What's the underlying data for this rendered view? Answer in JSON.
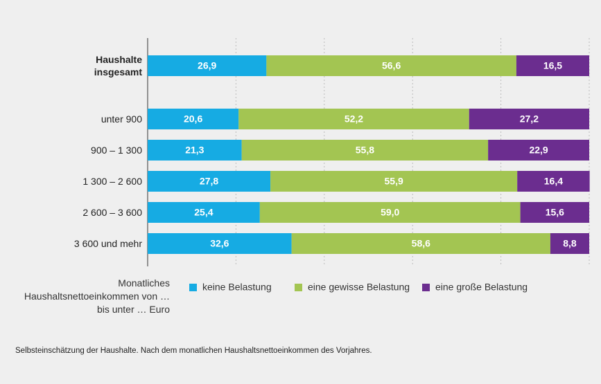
{
  "chart_data": {
    "type": "stacked_barh",
    "categories": [
      "Haushalte insgesamt",
      "unter 900",
      "900 – 1 300",
      "1 300 – 2 600",
      "2 600 – 3 600",
      "3 600 und mehr"
    ],
    "series": [
      {
        "name": "keine Belastung",
        "color": "#16abe3",
        "values": [
          26.9,
          20.6,
          21.3,
          27.8,
          25.4,
          32.6
        ],
        "value_labels": [
          "26,9",
          "20,6",
          "21,3",
          "27,8",
          "25,4",
          "32,6"
        ]
      },
      {
        "name": "eine gewisse Belastung",
        "color": "#a3c552",
        "values": [
          56.6,
          52.2,
          55.8,
          55.9,
          59.0,
          58.6
        ],
        "value_labels": [
          "56,6",
          "52,2",
          "55,8",
          "55,9",
          "59,0",
          "58,6"
        ]
      },
      {
        "name": "eine große Belastung",
        "color": "#6b2d8f",
        "values": [
          16.5,
          27.2,
          22.9,
          16.4,
          15.6,
          8.8
        ],
        "value_labels": [
          "16,5",
          "27,2",
          "22,9",
          "16,4",
          "15,6",
          "8,8"
        ]
      }
    ],
    "xlim": [
      0,
      100
    ],
    "xticks": [
      0,
      20,
      40,
      60,
      80,
      100
    ],
    "grid": true,
    "legend_title": "Monatliches Haushaltsnettoeinkommen von … bis unter … Euro",
    "footnote": "Selbsteinschätzung der Haushalte. Nach dem monatlichen Haushaltsnettoeinkommen des Vorjahres."
  }
}
